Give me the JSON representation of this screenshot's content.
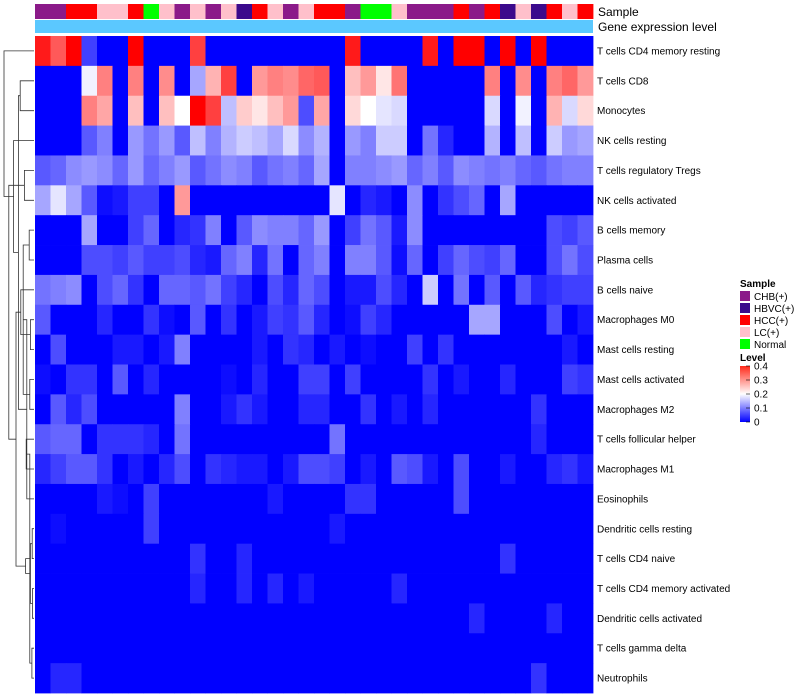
{
  "chart_data": {
    "type": "heatmap",
    "title": "",
    "top_tracks": {
      "sample_label": "Sample",
      "level_label": "Gene expression level"
    },
    "sample_annotation": [
      "CHB(+)",
      "CHB(+)",
      "HCC(+)",
      "HCC(+)",
      "LC(+)",
      "LC(+)",
      "HCC(+)",
      "Normal",
      "LC(+)",
      "CHB(+)",
      "LC(+)",
      "CHB(+)",
      "LC(+)",
      "HBVC(+)",
      "HCC(+)",
      "LC(+)",
      "CHB(+)",
      "LC(+)",
      "HCC(+)",
      "HCC(+)",
      "CHB(+)",
      "Normal",
      "Normal",
      "LC(+)",
      "CHB(+)",
      "CHB(+)",
      "CHB(+)",
      "HCC(+)",
      "CHB(+)",
      "HCC(+)",
      "HBVC(+)",
      "LC(+)",
      "HBVC(+)",
      "HCC(+)",
      "LC(+)",
      "HCC(+)"
    ],
    "level_track_value": 0.13,
    "rows": [
      "T cells CD4 memory resting",
      "T cells CD8",
      "Monocytes",
      "NK cells resting",
      "T cells regulatory  Tregs",
      "NK cells activated",
      "B cells memory",
      "Plasma cells",
      "B cells naive",
      "Macrophages M0",
      "Mast cells resting",
      "Mast cells activated",
      "Macrophages M2",
      "T cells follicular helper",
      "Macrophages M1",
      "Eosinophils",
      "Dendritic cells resting",
      "T cells CD4 naive",
      "T cells CD4 memory activated",
      "Dendritic cells activated",
      "T cells gamma delta",
      "Neutrophils"
    ],
    "values": [
      [
        0.38,
        0.33,
        0.4,
        0.05,
        0.0,
        0.0,
        0.4,
        0.0,
        0.0,
        0.0,
        0.35,
        0.0,
        0.0,
        0.0,
        0.0,
        0.0,
        0.0,
        0.0,
        0.0,
        0.0,
        0.38,
        0.0,
        0.0,
        0.0,
        0.0,
        0.38,
        0.0,
        0.4,
        0.4,
        0.0,
        0.4,
        0.0,
        0.4,
        0.0,
        0.0,
        0.0
      ],
      [
        0.0,
        0.0,
        0.0,
        0.19,
        0.3,
        0.0,
        0.3,
        0.0,
        0.29,
        0.0,
        0.13,
        0.26,
        0.35,
        0.0,
        0.28,
        0.3,
        0.29,
        0.32,
        0.33,
        0.0,
        0.25,
        0.28,
        0.22,
        0.31,
        0.0,
        0.0,
        0.0,
        0.0,
        0.0,
        0.3,
        0.0,
        0.29,
        0.0,
        0.3,
        0.32,
        0.28
      ],
      [
        0.0,
        0.0,
        0.0,
        0.3,
        0.27,
        0.0,
        0.25,
        0.0,
        0.25,
        0.2,
        0.4,
        0.35,
        0.15,
        0.24,
        0.22,
        0.25,
        0.28,
        0.06,
        0.27,
        0.0,
        0.23,
        0.2,
        0.18,
        0.17,
        0.0,
        0.0,
        0.0,
        0.0,
        0.0,
        0.17,
        0.0,
        0.19,
        0.0,
        0.26,
        0.17,
        0.23
      ],
      [
        0.0,
        0.0,
        0.0,
        0.07,
        0.1,
        0.0,
        0.12,
        0.09,
        0.12,
        0.07,
        0.15,
        0.1,
        0.14,
        0.16,
        0.15,
        0.13,
        0.17,
        0.11,
        0.14,
        0.0,
        0.12,
        0.1,
        0.16,
        0.16,
        0.0,
        0.09,
        0.03,
        0.0,
        0.0,
        0.14,
        0.0,
        0.15,
        0.0,
        0.16,
        0.12,
        0.13
      ],
      [
        0.07,
        0.08,
        0.11,
        0.12,
        0.11,
        0.08,
        0.12,
        0.08,
        0.1,
        0.12,
        0.07,
        0.09,
        0.11,
        0.1,
        0.07,
        0.09,
        0.1,
        0.08,
        0.13,
        0.0,
        0.1,
        0.1,
        0.11,
        0.12,
        0.08,
        0.1,
        0.07,
        0.11,
        0.1,
        0.09,
        0.1,
        0.08,
        0.07,
        0.09,
        0.1,
        0.1
      ],
      [
        0.13,
        0.18,
        0.13,
        0.07,
        0.01,
        0.02,
        0.05,
        0.05,
        0.0,
        0.28,
        0.0,
        0.0,
        0.0,
        0.0,
        0.0,
        0.0,
        0.0,
        0.0,
        0.0,
        0.18,
        0.0,
        0.03,
        0.02,
        0.0,
        0.11,
        0.0,
        0.04,
        0.06,
        0.08,
        0.0,
        0.13,
        0.0,
        0.0,
        0.0,
        0.0,
        0.0
      ],
      [
        0.0,
        0.0,
        0.0,
        0.13,
        0.0,
        0.0,
        0.05,
        0.08,
        0.0,
        0.03,
        0.04,
        0.1,
        0.0,
        0.07,
        0.11,
        0.1,
        0.1,
        0.08,
        0.12,
        0.0,
        0.05,
        0.09,
        0.07,
        0.02,
        0.11,
        0.0,
        0.0,
        0.0,
        0.0,
        0.0,
        0.0,
        0.0,
        0.0,
        0.06,
        0.05,
        0.07
      ],
      [
        0.0,
        0.0,
        0.0,
        0.06,
        0.06,
        0.05,
        0.07,
        0.05,
        0.05,
        0.06,
        0.03,
        0.02,
        0.08,
        0.1,
        0.03,
        0.09,
        0.0,
        0.08,
        0.1,
        0.0,
        0.1,
        0.1,
        0.07,
        0.01,
        0.08,
        0.0,
        0.05,
        0.08,
        0.06,
        0.05,
        0.08,
        0.0,
        0.0,
        0.06,
        0.09,
        0.06
      ],
      [
        0.09,
        0.1,
        0.11,
        0.0,
        0.06,
        0.08,
        0.04,
        0.0,
        0.08,
        0.08,
        0.07,
        0.09,
        0.05,
        0.03,
        0.0,
        0.06,
        0.03,
        0.08,
        0.06,
        0.0,
        0.02,
        0.02,
        0.06,
        0.03,
        0.0,
        0.16,
        0.0,
        0.09,
        0.0,
        0.07,
        0.0,
        0.07,
        0.03,
        0.04,
        0.05,
        0.05
      ],
      [
        0.07,
        0.0,
        0.0,
        0.0,
        0.03,
        0.0,
        0.0,
        0.04,
        0.01,
        0.0,
        0.07,
        0.0,
        0.04,
        0.0,
        0.02,
        0.05,
        0.04,
        0.07,
        0.03,
        0.0,
        0.01,
        0.05,
        0.03,
        0.0,
        0.0,
        0.0,
        0.0,
        0.0,
        0.13,
        0.13,
        0.0,
        0.0,
        0.0,
        0.06,
        0.0,
        0.02
      ],
      [
        0.0,
        0.06,
        0.0,
        0.0,
        0.0,
        0.02,
        0.02,
        0.0,
        0.02,
        0.1,
        0.0,
        0.0,
        0.0,
        0.0,
        0.02,
        0.0,
        0.04,
        0.03,
        0.0,
        0.02,
        0.0,
        0.01,
        0.0,
        0.0,
        0.05,
        0.0,
        0.04,
        0.0,
        0.0,
        0.0,
        0.0,
        0.0,
        0.0,
        0.0,
        0.02,
        0.0
      ],
      [
        0.01,
        0.0,
        0.04,
        0.04,
        0.0,
        0.07,
        0.0,
        0.03,
        0.0,
        0.0,
        0.0,
        0.0,
        0.01,
        0.0,
        0.03,
        0.0,
        0.0,
        0.05,
        0.05,
        0.0,
        0.05,
        0.0,
        0.0,
        0.0,
        0.0,
        0.04,
        0.0,
        0.02,
        0.0,
        0.0,
        0.03,
        0.0,
        0.0,
        0.0,
        0.05,
        0.04
      ],
      [
        0.0,
        0.07,
        0.03,
        0.06,
        0.0,
        0.0,
        0.0,
        0.0,
        0.0,
        0.1,
        0.0,
        0.0,
        0.02,
        0.04,
        0.02,
        0.0,
        0.0,
        0.03,
        0.03,
        0.0,
        0.0,
        0.04,
        0.0,
        0.02,
        0.0,
        0.03,
        0.0,
        0.0,
        0.0,
        0.0,
        0.0,
        0.0,
        0.04,
        0.0,
        0.0,
        0.0
      ],
      [
        0.07,
        0.08,
        0.08,
        0.0,
        0.04,
        0.04,
        0.04,
        0.03,
        0.0,
        0.09,
        0.0,
        0.0,
        0.0,
        0.0,
        0.0,
        0.0,
        0.0,
        0.0,
        0.0,
        0.09,
        0.0,
        0.0,
        0.0,
        0.0,
        0.0,
        0.0,
        0.0,
        0.0,
        0.0,
        0.0,
        0.0,
        0.0,
        0.03,
        0.0,
        0.0,
        0.0
      ],
      [
        0.03,
        0.05,
        0.07,
        0.07,
        0.04,
        0.0,
        0.02,
        0.0,
        0.03,
        0.06,
        0.0,
        0.04,
        0.03,
        0.02,
        0.02,
        0.0,
        0.02,
        0.06,
        0.06,
        0.05,
        0.0,
        0.02,
        0.0,
        0.07,
        0.06,
        0.02,
        0.0,
        0.06,
        0.0,
        0.0,
        0.02,
        0.0,
        0.0,
        0.03,
        0.04,
        0.02
      ],
      [
        0.0,
        0.0,
        0.0,
        0.0,
        0.02,
        0.01,
        0.0,
        0.05,
        0.0,
        0.0,
        0.0,
        0.0,
        0.0,
        0.0,
        0.0,
        0.02,
        0.0,
        0.0,
        0.0,
        0.0,
        0.04,
        0.04,
        0.0,
        0.0,
        0.0,
        0.0,
        0.0,
        0.06,
        0.0,
        0.0,
        0.0,
        0.0,
        0.0,
        0.0,
        0.0,
        0.0
      ],
      [
        0.0,
        0.01,
        0.0,
        0.0,
        0.0,
        0.0,
        0.0,
        0.05,
        0.0,
        0.0,
        0.0,
        0.0,
        0.0,
        0.0,
        0.0,
        0.0,
        0.0,
        0.0,
        0.0,
        0.02,
        0.0,
        0.0,
        0.0,
        0.0,
        0.0,
        0.0,
        0.0,
        0.0,
        0.0,
        0.0,
        0.0,
        0.0,
        0.0,
        0.0,
        0.0,
        0.0
      ],
      [
        0.0,
        0.0,
        0.0,
        0.0,
        0.0,
        0.0,
        0.0,
        0.0,
        0.0,
        0.0,
        0.04,
        0.0,
        0.0,
        0.03,
        0.0,
        0.0,
        0.0,
        0.0,
        0.0,
        0.0,
        0.0,
        0.0,
        0.0,
        0.0,
        0.0,
        0.0,
        0.0,
        0.0,
        0.0,
        0.0,
        0.04,
        0.0,
        0.0,
        0.0,
        0.0,
        0.0
      ],
      [
        0.0,
        0.0,
        0.0,
        0.0,
        0.0,
        0.0,
        0.0,
        0.0,
        0.0,
        0.0,
        0.03,
        0.0,
        0.0,
        0.03,
        0.0,
        0.03,
        0.0,
        0.02,
        0.0,
        0.0,
        0.0,
        0.0,
        0.0,
        0.03,
        0.0,
        0.0,
        0.0,
        0.0,
        0.0,
        0.0,
        0.0,
        0.0,
        0.0,
        0.0,
        0.0,
        0.0
      ],
      [
        0.0,
        0.0,
        0.0,
        0.0,
        0.0,
        0.0,
        0.0,
        0.0,
        0.0,
        0.0,
        0.0,
        0.0,
        0.0,
        0.0,
        0.0,
        0.0,
        0.0,
        0.0,
        0.0,
        0.0,
        0.0,
        0.0,
        0.0,
        0.0,
        0.0,
        0.0,
        0.0,
        0.0,
        0.03,
        0.0,
        0.0,
        0.0,
        0.0,
        0.03,
        0.0,
        0.0
      ],
      [
        0.0,
        0.0,
        0.0,
        0.0,
        0.0,
        0.0,
        0.0,
        0.0,
        0.0,
        0.0,
        0.0,
        0.0,
        0.0,
        0.0,
        0.0,
        0.0,
        0.0,
        0.0,
        0.0,
        0.0,
        0.0,
        0.0,
        0.0,
        0.0,
        0.0,
        0.0,
        0.0,
        0.0,
        0.0,
        0.0,
        0.0,
        0.0,
        0.0,
        0.0,
        0.0,
        0.0
      ],
      [
        0.0,
        0.03,
        0.03,
        0.0,
        0.0,
        0.0,
        0.0,
        0.0,
        0.0,
        0.0,
        0.0,
        0.0,
        0.0,
        0.0,
        0.0,
        0.0,
        0.0,
        0.0,
        0.0,
        0.0,
        0.0,
        0.0,
        0.0,
        0.0,
        0.0,
        0.0,
        0.0,
        0.0,
        0.0,
        0.0,
        0.0,
        0.0,
        0.04,
        0.0,
        0.0,
        0.0
      ]
    ],
    "color_scale": {
      "min": 0,
      "max": 0.4,
      "low": "#0000ff",
      "mid": "#ffffff",
      "high": "#ff0000",
      "mid_value": 0.2
    },
    "legend": {
      "sample_title": "Sample",
      "sample_items": [
        {
          "label": "CHB(+)",
          "color": "#8b1a89"
        },
        {
          "label": "HBVC(+)",
          "color": "#3b0a8c"
        },
        {
          "label": "HCC(+)",
          "color": "#ff0000"
        },
        {
          "label": "LC(+)",
          "color": "#ffc0cb"
        },
        {
          "label": "Normal",
          "color": "#00ff00"
        }
      ],
      "level_title": "Level",
      "level_ticks": [
        {
          "value": 0.4,
          "label": "0.4"
        },
        {
          "value": 0.3,
          "label": "0.3"
        },
        {
          "value": 0.2,
          "label": "0.2"
        },
        {
          "value": 0.1,
          "label": "0.1"
        },
        {
          "value": 0,
          "label": "0"
        }
      ],
      "level_track_color": "#5bc8ff"
    },
    "dendrogram": {
      "merges": [
        [
          6,
          7,
          0.8
        ],
        [
          9,
          10,
          0.6
        ],
        [
          11,
          12,
          0.7
        ],
        [
          16,
          17,
          0.3
        ],
        [
          18,
          19,
          0.25
        ],
        [
          20,
          21,
          0.35
        ],
        [
          14,
          13,
          1.3
        ],
        [
          1,
          2,
          2.3
        ],
        [
          4,
          5,
          1.6
        ],
        [
          8,
          23,
          2.2
        ],
        [
          22,
          24,
          1.8
        ],
        [
          25,
          26,
          0.6
        ],
        [
          27,
          28,
          0.7
        ],
        [
          15,
          32,
          1.2
        ],
        [
          33,
          34,
          1.4
        ],
        [
          29,
          35,
          2.6
        ],
        [
          31,
          36,
          3.0
        ],
        [
          3,
          37,
          3.4
        ],
        [
          30,
          38,
          4.2
        ],
        [
          0,
          39,
          5.0
        ]
      ]
    }
  }
}
